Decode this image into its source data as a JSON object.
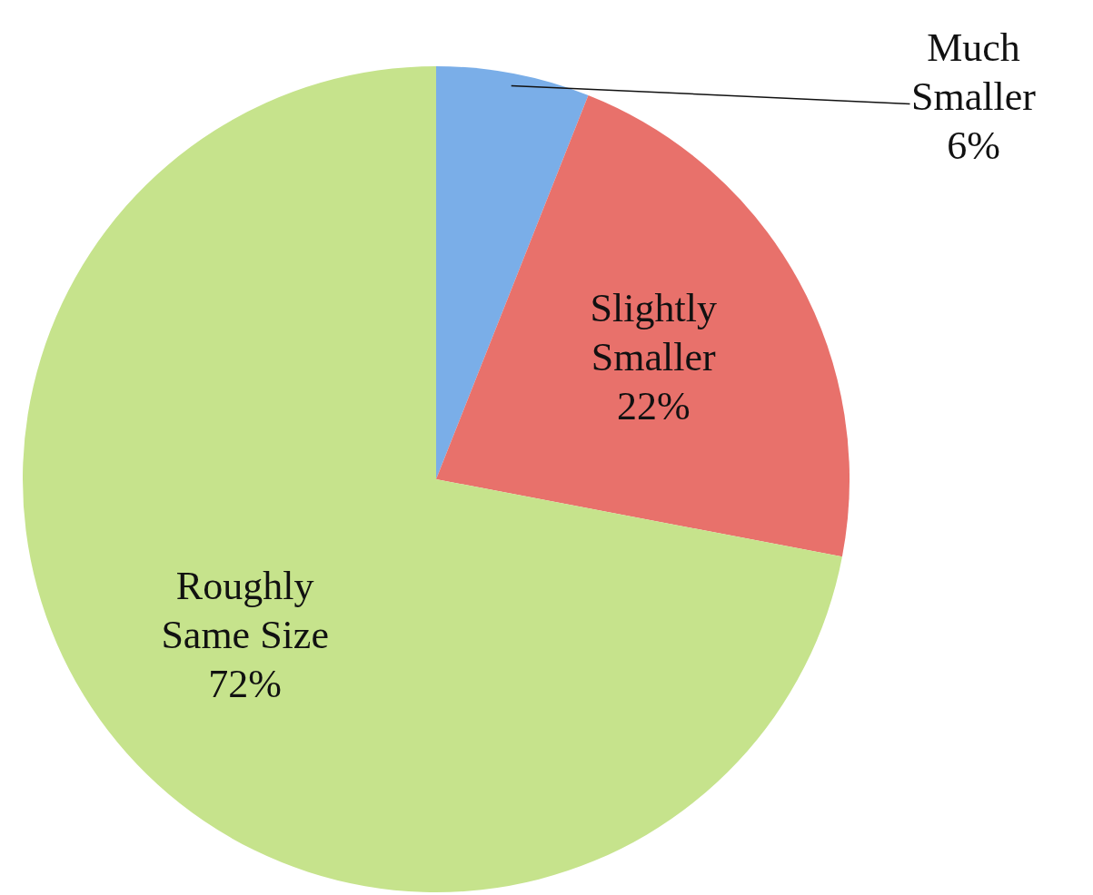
{
  "chart_data": {
    "type": "pie",
    "categories": [
      "Much Smaller",
      "Slightly Smaller",
      "Roughly Same Size"
    ],
    "values": [
      6,
      22,
      72
    ],
    "colors": [
      "#7aaee8",
      "#e8716b",
      "#c6e38c"
    ],
    "value_labels": [
      "6%",
      "22%",
      "72%"
    ],
    "legend": false
  }
}
